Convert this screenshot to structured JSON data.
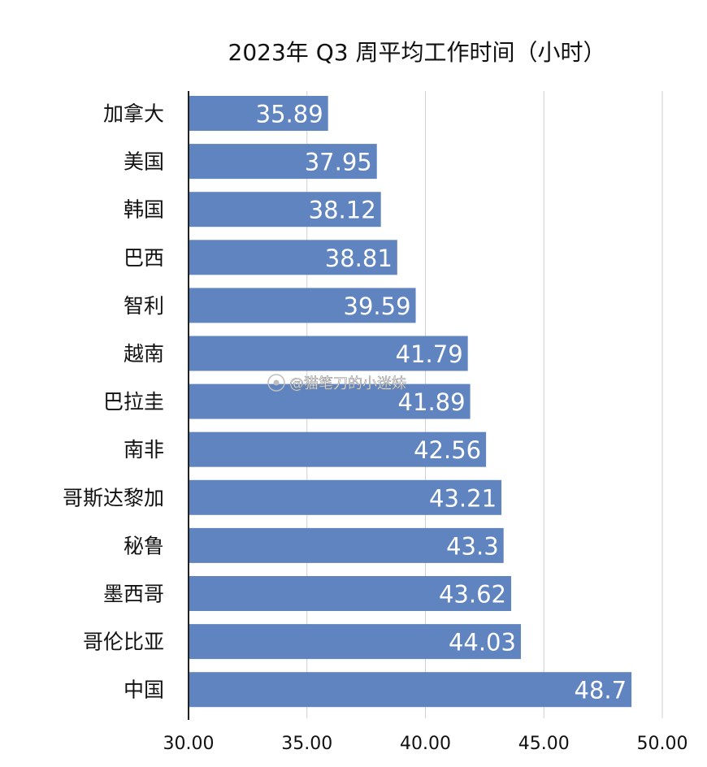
{
  "chart_data": {
    "type": "bar",
    "orientation": "horizontal",
    "title": "2023年 Q3 周平均工作时间（小时）",
    "categories": [
      "加拿大",
      "美国",
      "韩国",
      "巴西",
      "智利",
      "越南",
      "巴拉圭",
      "南非",
      "哥斯达黎加",
      "秘鲁",
      "墨西哥",
      "哥伦比亚",
      "中国"
    ],
    "values": [
      35.89,
      37.95,
      38.12,
      38.81,
      39.59,
      41.79,
      41.89,
      42.56,
      43.21,
      43.3,
      43.62,
      44.03,
      48.7
    ],
    "value_labels": [
      "35.89",
      "37.95",
      "38.12",
      "38.81",
      "39.59",
      "41.79",
      "41.89",
      "42.56",
      "43.21",
      "43.3",
      "43.62",
      "44.03",
      "48.7"
    ],
    "xlim": [
      30,
      50
    ],
    "x_ticks": [
      30,
      35,
      40,
      45,
      50
    ],
    "x_tick_labels": [
      "30.00",
      "35.00",
      "40.00",
      "45.00",
      "50.00"
    ],
    "grid": true,
    "bar_color": "#6084bf",
    "watermark": "@猫笔刀的小迷妹"
  }
}
